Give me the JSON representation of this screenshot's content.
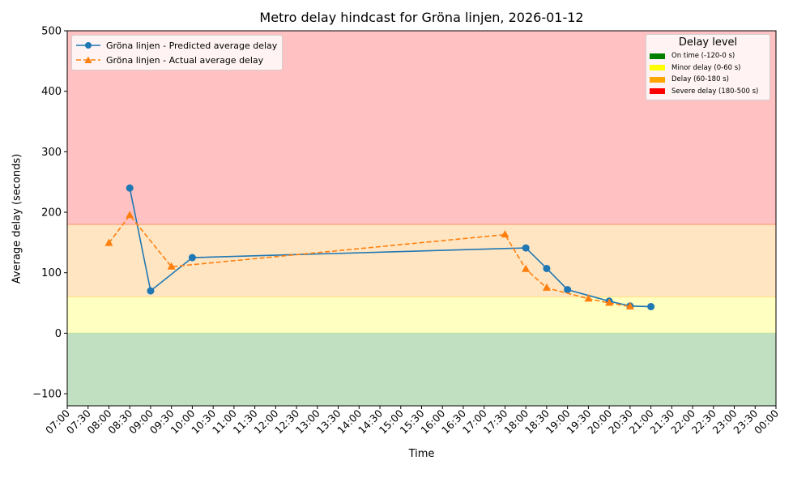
{
  "chart_data": {
    "type": "line",
    "title": "Metro delay hindcast for Gröna linjen, 2026-01-12",
    "xlabel": "Time",
    "ylabel": "Average delay (seconds)",
    "ylim": [
      -120,
      500
    ],
    "xlim": [
      "07:00",
      "00:00"
    ],
    "grid": false,
    "yticks": [
      -100,
      0,
      100,
      200,
      300,
      400,
      500
    ],
    "xticks": [
      "07:00",
      "07:30",
      "08:00",
      "08:30",
      "09:00",
      "09:30",
      "10:00",
      "10:30",
      "11:00",
      "11:30",
      "12:00",
      "12:30",
      "13:00",
      "13:30",
      "14:00",
      "14:30",
      "15:00",
      "15:30",
      "16:00",
      "16:30",
      "17:00",
      "17:30",
      "18:00",
      "18:30",
      "19:00",
      "19:30",
      "20:00",
      "20:30",
      "21:00",
      "21:30",
      "22:00",
      "22:30",
      "23:00",
      "23:30",
      "00:00"
    ],
    "series": [
      {
        "name": "Gröna linjen - Predicted average delay",
        "color": "#1f77b4",
        "style": "solid",
        "marker": "circle",
        "x": [
          "08:30",
          "09:00",
          "10:00",
          "18:00",
          "18:30",
          "19:00",
          "20:00",
          "20:30",
          "21:00"
        ],
        "values": [
          240,
          70,
          125,
          141,
          107,
          72,
          53,
          45,
          44
        ]
      },
      {
        "name": "Gröna linjen - Actual average delay",
        "color": "#ff7f0e",
        "style": "dashed",
        "marker": "triangle",
        "x": [
          "08:00",
          "08:30",
          "09:30",
          "17:30",
          "18:00",
          "18:30",
          "19:30",
          "20:00",
          "20:30"
        ],
        "values": [
          149,
          195,
          110,
          163,
          106,
          75,
          57,
          50,
          44
        ]
      }
    ],
    "bands": [
      {
        "label": "On time (-120-0 s)",
        "from": -120,
        "to": 0,
        "color": "#008000",
        "fill": "#c1dfc1"
      },
      {
        "label": "Minor delay (0-60 s)",
        "from": 0,
        "to": 60,
        "color": "#ffff00",
        "fill": "#ffffc1"
      },
      {
        "label": "Delay (60-180 s)",
        "from": 60,
        "to": 180,
        "color": "#ffa500",
        "fill": "#ffe5c1"
      },
      {
        "label": "Severe delay (180-500 s)",
        "from": 180,
        "to": 500,
        "color": "#ff0000",
        "fill": "#ffc1c1"
      }
    ],
    "legends": {
      "series_position": "upper left",
      "bands_title": "Delay level",
      "bands_position": "upper right"
    }
  }
}
